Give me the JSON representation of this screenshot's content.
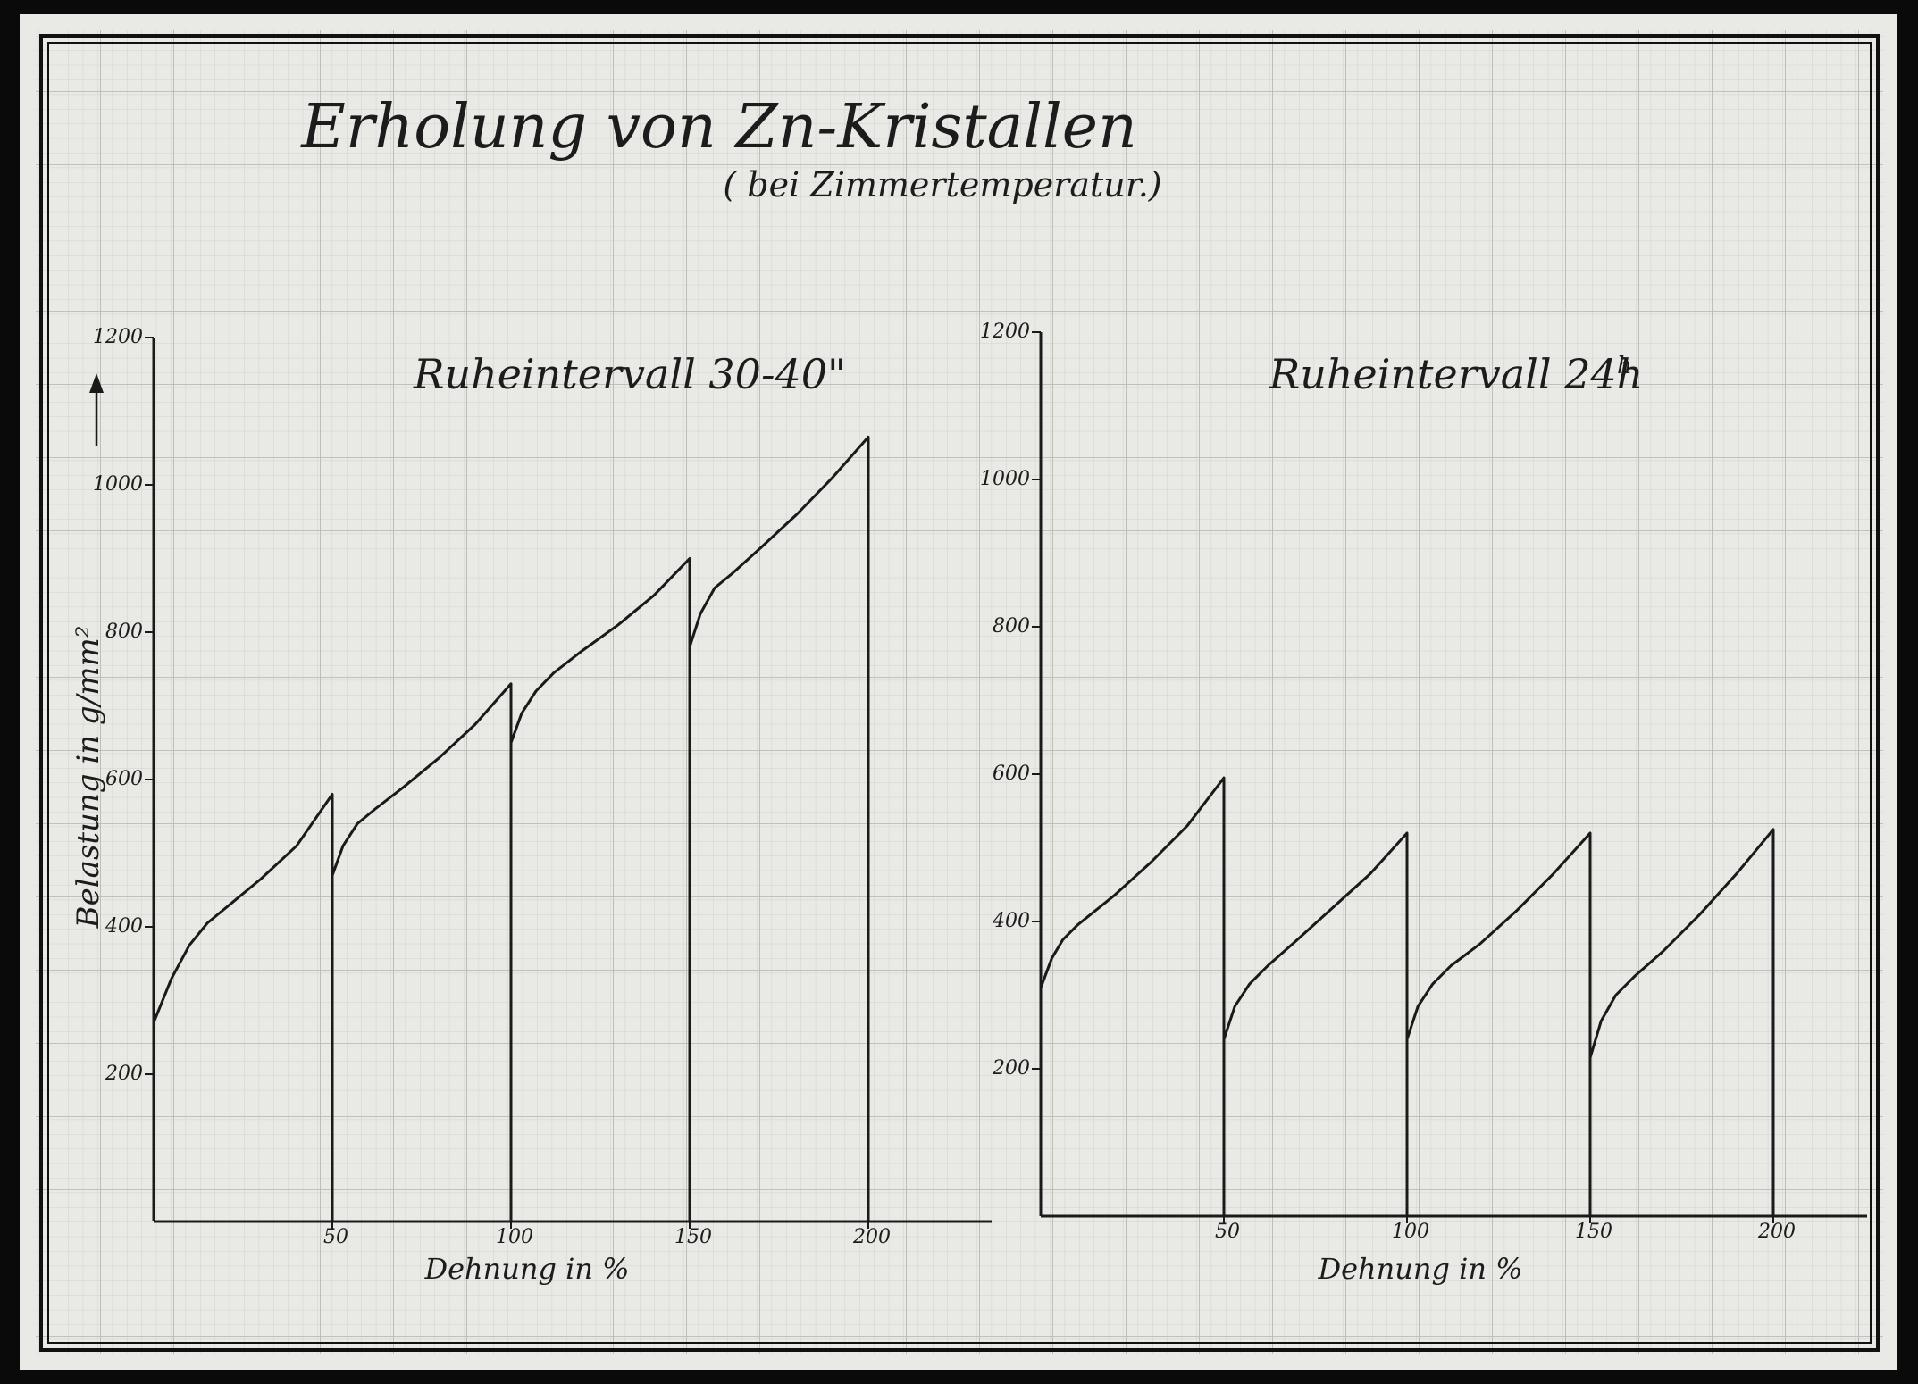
{
  "page": {
    "title": "Erholung von Zn-Kristallen",
    "subtitle": "( bei Zimmertemperatur.)"
  },
  "colors": {
    "paper": "#e9e9e5",
    "grid_fine": "#cfcfca",
    "grid_major": "#b2b2ac",
    "ink": "#1a1a1a",
    "border": "#0a0a0a"
  },
  "chart_data": [
    {
      "type": "line",
      "title": "Ruheintervall 30-40\"",
      "xlabel": "Dehnung in %",
      "ylabel": "Belastung in g/mm²",
      "xlim": [
        0,
        230
      ],
      "ylim": [
        0,
        1200
      ],
      "xticks": [
        50,
        100,
        150,
        200
      ],
      "yticks": [
        200,
        400,
        600,
        800,
        1000,
        1200
      ],
      "grid": true,
      "series": [
        {
          "x": [
            0,
            5,
            10,
            15,
            20,
            30,
            40,
            50,
            50,
            50,
            53,
            57,
            62,
            70,
            80,
            90,
            100,
            100,
            100,
            103,
            107,
            112,
            120,
            130,
            140,
            150,
            150,
            150,
            153,
            157,
            162,
            170,
            180,
            190,
            200,
            200
          ],
          "y": [
            270,
            330,
            375,
            405,
            425,
            465,
            510,
            580,
            0,
            470,
            510,
            540,
            560,
            590,
            630,
            675,
            730,
            0,
            650,
            690,
            720,
            745,
            775,
            810,
            850,
            900,
            0,
            780,
            825,
            860,
            880,
            915,
            960,
            1010,
            1065,
            0
          ]
        }
      ]
    },
    {
      "type": "line",
      "title": "Ruheintervall 24h",
      "xlabel": "Dehnung in %",
      "ylabel": "",
      "xlim": [
        0,
        230
      ],
      "ylim": [
        0,
        1200
      ],
      "xticks": [
        50,
        100,
        150,
        200
      ],
      "yticks": [
        200,
        400,
        600,
        800,
        1000,
        1200
      ],
      "grid": true,
      "series": [
        {
          "x": [
            0,
            3,
            6,
            10,
            15,
            20,
            30,
            40,
            50,
            50,
            50,
            53,
            57,
            62,
            70,
            80,
            90,
            100,
            100,
            100,
            103,
            107,
            112,
            120,
            130,
            140,
            150,
            150,
            150,
            153,
            157,
            162,
            170,
            180,
            190,
            200,
            200
          ],
          "y": [
            310,
            350,
            375,
            395,
            415,
            435,
            480,
            530,
            595,
            0,
            240,
            285,
            315,
            340,
            375,
            420,
            465,
            520,
            0,
            240,
            285,
            315,
            340,
            370,
            415,
            465,
            520,
            0,
            215,
            265,
            300,
            325,
            360,
            410,
            465,
            525,
            0
          ]
        }
      ]
    }
  ],
  "labels": {
    "superscript_h": "h"
  }
}
